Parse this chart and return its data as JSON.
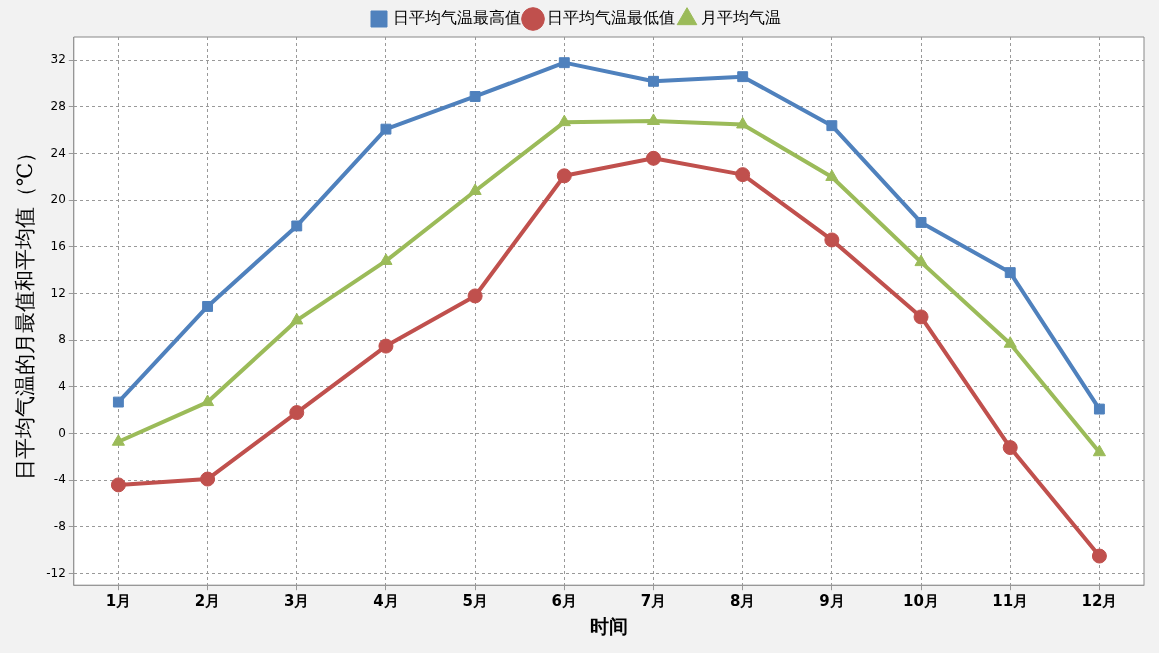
{
  "chart_data": {
    "type": "line",
    "xlabel": "时间",
    "ylabel": "日平均气温的月最值和平均值（℃）",
    "categories": [
      "1月",
      "2月",
      "3月",
      "4月",
      "5月",
      "6月",
      "7月",
      "8月",
      "9月",
      "10月",
      "11月",
      "12月"
    ],
    "series": [
      {
        "name": "日平均气温最高值",
        "color": "#4f81bd",
        "marker": "square",
        "values": [
          2.7,
          10.9,
          17.8,
          26.1,
          28.9,
          31.8,
          30.2,
          30.6,
          26.4,
          18.1,
          13.8,
          2.1
        ]
      },
      {
        "name": "日平均气温最低值",
        "color": "#c0504d",
        "marker": "circle",
        "values": [
          -4.4,
          -3.9,
          1.8,
          7.5,
          11.8,
          22.1,
          23.6,
          22.2,
          16.6,
          10.0,
          -1.2,
          -10.5
        ]
      },
      {
        "name": "月平均气温",
        "color": "#9bbb59",
        "marker": "triangle",
        "values": [
          -0.7,
          2.7,
          9.7,
          14.8,
          20.8,
          26.7,
          26.8,
          26.5,
          22.0,
          14.7,
          7.7,
          -1.6
        ]
      }
    ],
    "ylim": [
      -13,
      34
    ],
    "yticks": [
      -12,
      -8,
      -4,
      0,
      4,
      8,
      12,
      16,
      20,
      24,
      28,
      32
    ],
    "grid": true,
    "legend": "top",
    "line_style": "solid"
  }
}
